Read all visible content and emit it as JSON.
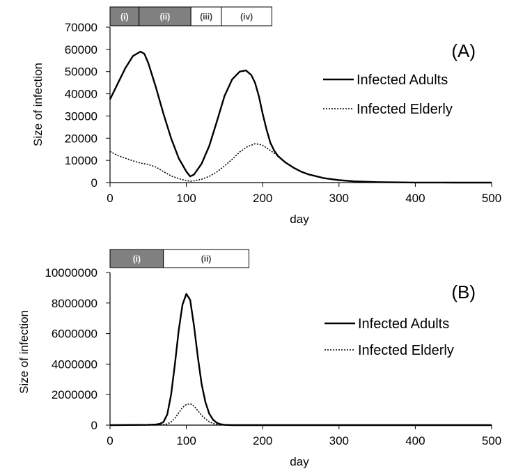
{
  "chart_data": [
    {
      "type": "line",
      "panel_label": "(A)",
      "xlabel": "day",
      "ylabel": "Size of infection",
      "xlim": [
        0,
        500
      ],
      "ylim": [
        0,
        70000
      ],
      "xticks": [
        0,
        100,
        200,
        300,
        400,
        500
      ],
      "yticks": [
        0,
        10000,
        20000,
        30000,
        40000,
        50000,
        60000,
        70000
      ],
      "grid": false,
      "legend_position": "right",
      "phases": [
        {
          "label": "(i)",
          "start": 0,
          "end": 38,
          "shaded": true
        },
        {
          "label": "(ii)",
          "start": 38,
          "end": 106,
          "shaded": true
        },
        {
          "label": "(iii)",
          "start": 106,
          "end": 146,
          "shaded": false
        },
        {
          "label": "(iv)",
          "start": 146,
          "end": 212,
          "shaded": false
        }
      ],
      "series": [
        {
          "name": "Infected Adults",
          "style": "solid",
          "x": [
            0,
            10,
            20,
            30,
            40,
            45,
            50,
            60,
            70,
            80,
            90,
            100,
            105,
            110,
            120,
            130,
            140,
            150,
            160,
            170,
            178,
            185,
            190,
            195,
            200,
            205,
            210,
            215,
            220,
            230,
            240,
            250,
            260,
            280,
            300,
            320,
            350,
            380,
            400,
            450,
            500
          ],
          "values": [
            37500,
            44500,
            51500,
            57000,
            59000,
            58000,
            54000,
            43000,
            31000,
            20000,
            11000,
            5000,
            2800,
            3600,
            8500,
            16500,
            27500,
            39000,
            46500,
            50000,
            50500,
            48500,
            45000,
            39000,
            31000,
            24000,
            18000,
            14500,
            12000,
            9000,
            6800,
            5000,
            3700,
            2000,
            1100,
            550,
            220,
            80,
            40,
            10,
            0
          ]
        },
        {
          "name": "Infected Elderly",
          "style": "dotted",
          "x": [
            0,
            10,
            20,
            30,
            40,
            50,
            60,
            70,
            80,
            90,
            100,
            105,
            110,
            120,
            130,
            140,
            150,
            160,
            170,
            180,
            190,
            195,
            200,
            210,
            215,
            220,
            230,
            240,
            250,
            260,
            280,
            300,
            320,
            350,
            380,
            400,
            450,
            500
          ],
          "values": [
            14000,
            12200,
            11000,
            9800,
            8800,
            8200,
            7000,
            5000,
            3000,
            1800,
            900,
            600,
            800,
            1500,
            2800,
            4800,
            7500,
            10500,
            13800,
            16200,
            17500,
            17300,
            16800,
            14500,
            13200,
            12000,
            9000,
            6800,
            5000,
            3700,
            2000,
            1100,
            550,
            220,
            80,
            40,
            10,
            0
          ]
        }
      ]
    },
    {
      "type": "line",
      "panel_label": "(B)",
      "xlabel": "day",
      "ylabel": "Size of infection",
      "xlim": [
        0,
        500
      ],
      "ylim": [
        0,
        10000000
      ],
      "xticks": [
        0,
        100,
        200,
        300,
        400,
        500
      ],
      "yticks": [
        0,
        2000000,
        4000000,
        6000000,
        8000000,
        10000000
      ],
      "grid": false,
      "legend_position": "right",
      "phases": [
        {
          "label": "(i)",
          "start": 0,
          "end": 70,
          "shaded": true
        },
        {
          "label": "(ii)",
          "start": 70,
          "end": 182,
          "shaded": false
        }
      ],
      "series": [
        {
          "name": "Infected Adults",
          "style": "solid",
          "x": [
            0,
            50,
            60,
            65,
            70,
            75,
            80,
            85,
            90,
            95,
            100,
            105,
            110,
            115,
            120,
            125,
            130,
            135,
            140,
            145,
            150,
            160,
            200,
            300,
            400,
            500
          ],
          "values": [
            0,
            20000,
            40000,
            80000,
            200000,
            700000,
            2000000,
            4000000,
            6200000,
            7900000,
            8600000,
            8200000,
            6500000,
            4500000,
            2700000,
            1500000,
            750000,
            350000,
            150000,
            60000,
            20000,
            0,
            0,
            0,
            0,
            0
          ]
        },
        {
          "name": "Infected Elderly",
          "style": "dotted",
          "x": [
            0,
            60,
            70,
            75,
            80,
            85,
            90,
            95,
            100,
            105,
            110,
            115,
            120,
            125,
            130,
            135,
            140,
            150,
            200,
            300,
            400,
            500
          ],
          "values": [
            0,
            5000,
            30000,
            80000,
            200000,
            450000,
            800000,
            1150000,
            1350000,
            1400000,
            1250000,
            950000,
            650000,
            400000,
            220000,
            110000,
            50000,
            10000,
            0,
            0,
            0,
            0
          ]
        }
      ]
    }
  ]
}
